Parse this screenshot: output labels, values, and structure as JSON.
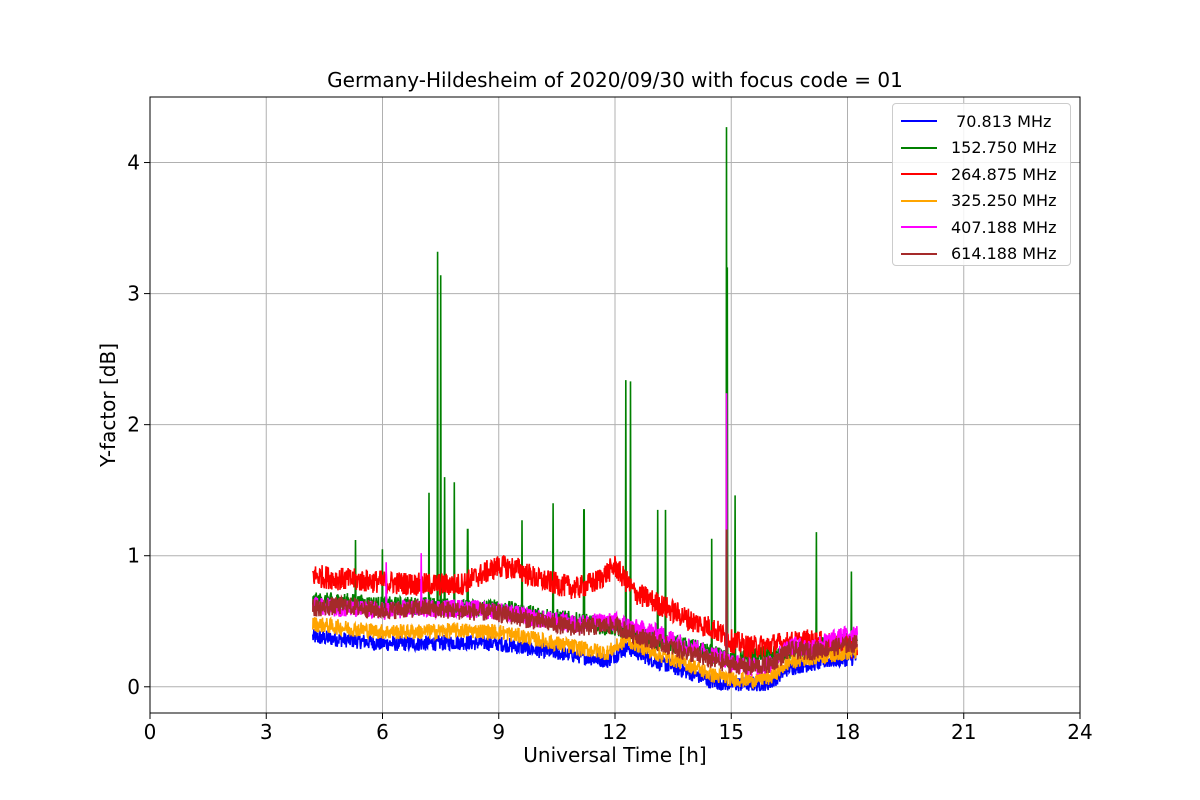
{
  "chart_data": {
    "type": "line",
    "title": "Germany-Hildesheim of 2020/09/30 with focus code = 01",
    "xlabel": "Universal Time [h]",
    "ylabel": "Y-factor [dB]",
    "xlim": [
      0,
      24
    ],
    "ylim": [
      -0.2,
      4.5
    ],
    "xticks": [
      "0",
      "3",
      "6",
      "9",
      "12",
      "15",
      "18",
      "21",
      "24"
    ],
    "yticks": [
      "0",
      "1",
      "2",
      "3",
      "4"
    ],
    "grid": true,
    "legend_position": "top-right",
    "x_range_of_data": [
      4.2,
      18.25
    ],
    "series": [
      {
        "name": " 70.813 MHz",
        "color": "#0000ff",
        "approx_points": [
          [
            4.2,
            0.38
          ],
          [
            5,
            0.36
          ],
          [
            6,
            0.33
          ],
          [
            7,
            0.33
          ],
          [
            8,
            0.34
          ],
          [
            9,
            0.33
          ],
          [
            10,
            0.28
          ],
          [
            11,
            0.24
          ],
          [
            11.8,
            0.2
          ],
          [
            12.3,
            0.3
          ],
          [
            13,
            0.2
          ],
          [
            14,
            0.1
          ],
          [
            14.5,
            0.04
          ],
          [
            15,
            0.02
          ],
          [
            15.5,
            0.02
          ],
          [
            16,
            0.03
          ],
          [
            16.5,
            0.15
          ],
          [
            17,
            0.17
          ],
          [
            17.5,
            0.2
          ],
          [
            18.2,
            0.22
          ]
        ]
      },
      {
        "name": "152.750 MHz",
        "color": "#008000",
        "approx_points": [
          [
            4.2,
            0.65
          ],
          [
            5,
            0.65
          ],
          [
            6,
            0.62
          ],
          [
            7,
            0.62
          ],
          [
            8,
            0.6
          ],
          [
            9,
            0.6
          ],
          [
            10,
            0.55
          ],
          [
            11,
            0.5
          ],
          [
            12,
            0.45
          ],
          [
            13,
            0.35
          ],
          [
            14,
            0.3
          ],
          [
            15,
            0.2
          ],
          [
            16,
            0.25
          ],
          [
            17,
            0.3
          ],
          [
            18.2,
            0.35
          ]
        ],
        "peaks": [
          [
            5.3,
            1.12
          ],
          [
            6,
            1.05
          ],
          [
            7.2,
            1.48
          ],
          [
            7.42,
            3.32
          ],
          [
            7.5,
            3.14
          ],
          [
            7.6,
            1.6
          ],
          [
            7.85,
            1.56
          ],
          [
            8.2,
            1.2
          ],
          [
            9.6,
            1.27
          ],
          [
            10.4,
            1.4
          ],
          [
            11.2,
            1.35
          ],
          [
            12.28,
            2.34
          ],
          [
            12.4,
            2.33
          ],
          [
            13.1,
            1.35
          ],
          [
            13.3,
            1.35
          ],
          [
            14.5,
            1.13
          ],
          [
            14.88,
            4.27
          ],
          [
            14.9,
            3.2
          ],
          [
            15.1,
            1.46
          ],
          [
            17.2,
            1.18
          ],
          [
            18.1,
            0.88
          ]
        ]
      },
      {
        "name": "264.875 MHz",
        "color": "#ff0000",
        "approx_points": [
          [
            4.2,
            0.85
          ],
          [
            5,
            0.82
          ],
          [
            6,
            0.8
          ],
          [
            7,
            0.78
          ],
          [
            8,
            0.78
          ],
          [
            9,
            0.92
          ],
          [
            9.5,
            0.9
          ],
          [
            10,
            0.82
          ],
          [
            11,
            0.75
          ],
          [
            11.5,
            0.8
          ],
          [
            12,
            0.92
          ],
          [
            12.5,
            0.72
          ],
          [
            13,
            0.65
          ],
          [
            14,
            0.5
          ],
          [
            14.5,
            0.45
          ],
          [
            15,
            0.35
          ],
          [
            15.5,
            0.3
          ],
          [
            16,
            0.32
          ],
          [
            17,
            0.35
          ],
          [
            18.2,
            0.3
          ]
        ]
      },
      {
        "name": "325.250 MHz",
        "color": "#ffa500",
        "approx_points": [
          [
            4.2,
            0.48
          ],
          [
            5,
            0.45
          ],
          [
            6,
            0.42
          ],
          [
            7,
            0.42
          ],
          [
            8,
            0.43
          ],
          [
            9,
            0.42
          ],
          [
            10,
            0.36
          ],
          [
            11,
            0.3
          ],
          [
            11.8,
            0.26
          ],
          [
            12.3,
            0.36
          ],
          [
            13,
            0.26
          ],
          [
            14,
            0.16
          ],
          [
            14.5,
            0.09
          ],
          [
            15,
            0.06
          ],
          [
            15.5,
            0.05
          ],
          [
            16,
            0.07
          ],
          [
            16.5,
            0.19
          ],
          [
            17,
            0.22
          ],
          [
            18.2,
            0.27
          ]
        ]
      },
      {
        "name": "407.188 MHz",
        "color": "#ff00ff",
        "approx_points": [
          [
            4.2,
            0.62
          ],
          [
            5,
            0.6
          ],
          [
            6,
            0.58
          ],
          [
            7,
            0.6
          ],
          [
            8,
            0.6
          ],
          [
            9,
            0.58
          ],
          [
            10,
            0.52
          ],
          [
            11,
            0.48
          ],
          [
            12,
            0.5
          ],
          [
            12.5,
            0.45
          ],
          [
            13,
            0.42
          ],
          [
            14,
            0.3
          ],
          [
            14.8,
            0.22
          ],
          [
            15,
            0.18
          ],
          [
            15.5,
            0.15
          ],
          [
            16,
            0.17
          ],
          [
            16.5,
            0.32
          ],
          [
            17,
            0.3
          ],
          [
            18.2,
            0.42
          ]
        ],
        "peaks": [
          [
            6.1,
            0.95
          ],
          [
            7,
            1.02
          ],
          [
            14.88,
            2.24
          ]
        ]
      },
      {
        "name": "614.188 MHz",
        "color": "#a52a2a",
        "approx_points": [
          [
            4.2,
            0.6
          ],
          [
            5,
            0.62
          ],
          [
            6,
            0.58
          ],
          [
            7,
            0.6
          ],
          [
            8,
            0.58
          ],
          [
            9,
            0.56
          ],
          [
            10,
            0.5
          ],
          [
            11,
            0.45
          ],
          [
            12,
            0.47
          ],
          [
            12.5,
            0.4
          ],
          [
            13,
            0.35
          ],
          [
            14,
            0.25
          ],
          [
            14.5,
            0.2
          ],
          [
            15,
            0.17
          ],
          [
            15.5,
            0.15
          ],
          [
            16,
            0.17
          ],
          [
            16.5,
            0.28
          ],
          [
            17,
            0.27
          ],
          [
            18.2,
            0.33
          ]
        ],
        "peaks": [
          [
            14.88,
            1.2
          ]
        ]
      }
    ]
  }
}
